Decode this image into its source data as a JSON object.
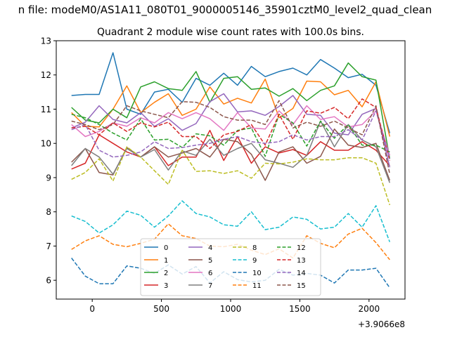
{
  "suptitle": "n file: modeM0/AS1A11_080T01_9000005146_35901cztM0_level2_quad_clean",
  "chart_data": {
    "type": "line",
    "title": "Quadrant 2 module wise count rates with 100.0s bins.",
    "xlabel": "",
    "ylabel": "",
    "x_offset_label": "+3.9066e8",
    "xlim": [
      -260,
      2260
    ],
    "ylim": [
      5.45,
      13.0
    ],
    "xticks": [
      0,
      500,
      1000,
      1500,
      2000
    ],
    "yticks": [
      6,
      7,
      8,
      9,
      10,
      11,
      12,
      13
    ],
    "legend_position": "lower-center",
    "x": [
      -150,
      -50,
      50,
      150,
      250,
      350,
      450,
      550,
      650,
      750,
      850,
      950,
      1050,
      1150,
      1250,
      1350,
      1450,
      1550,
      1650,
      1750,
      1850,
      1950,
      2050,
      2150
    ],
    "series": [
      {
        "name": "0",
        "color": "#1f77b4",
        "dash": "solid",
        "values": [
          11.4,
          11.43,
          11.43,
          12.65,
          11.0,
          10.85,
          11.5,
          11.58,
          11.2,
          11.9,
          11.7,
          12.05,
          11.7,
          12.25,
          11.95,
          12.1,
          12.2,
          12.0,
          12.45,
          12.2,
          11.92,
          12.02,
          11.7,
          10.3
        ]
      },
      {
        "name": "1",
        "color": "#ff7f0e",
        "dash": "solid",
        "values": [
          10.9,
          10.5,
          10.48,
          11.0,
          11.68,
          10.9,
          11.2,
          11.45,
          10.82,
          11.0,
          11.65,
          11.15,
          11.32,
          11.18,
          11.88,
          10.75,
          11.02,
          11.82,
          11.8,
          11.42,
          11.55,
          11.07,
          11.8,
          10.2
        ]
      },
      {
        "name": "2",
        "color": "#2ca02c",
        "dash": "solid",
        "values": [
          11.05,
          10.68,
          10.6,
          11.0,
          10.75,
          11.65,
          11.8,
          11.6,
          11.55,
          12.1,
          11.2,
          11.9,
          11.95,
          11.58,
          11.62,
          11.38,
          11.6,
          11.25,
          11.55,
          11.68,
          12.35,
          11.95,
          11.85,
          9.55
        ]
      },
      {
        "name": "3",
        "color": "#d62728",
        "dash": "solid",
        "values": [
          9.25,
          9.42,
          10.25,
          10.0,
          9.75,
          9.6,
          9.9,
          9.35,
          9.6,
          9.6,
          10.38,
          9.5,
          10.2,
          9.42,
          9.9,
          9.72,
          9.82,
          9.65,
          10.05,
          9.8,
          9.8,
          10.05,
          9.8,
          9.35
        ]
      },
      {
        "name": "4",
        "color": "#9467bd",
        "dash": "solid",
        "values": [
          10.45,
          10.62,
          11.1,
          10.7,
          10.6,
          10.9,
          10.5,
          10.72,
          10.38,
          10.58,
          11.22,
          11.45,
          10.92,
          10.95,
          10.82,
          11.08,
          11.4,
          10.85,
          10.82,
          10.3,
          10.25,
          10.85,
          11.02,
          9.3
        ]
      },
      {
        "name": "5",
        "color": "#8c564b",
        "dash": "solid",
        "values": [
          9.45,
          9.85,
          9.15,
          9.08,
          9.88,
          9.6,
          9.9,
          9.6,
          9.72,
          9.85,
          9.6,
          10.12,
          10.05,
          9.68,
          8.92,
          9.75,
          9.9,
          9.42,
          9.62,
          10.42,
          9.95,
          9.88,
          10.0,
          8.92
        ]
      },
      {
        "name": "6",
        "color": "#e377c2",
        "dash": "solid",
        "values": [
          10.55,
          10.2,
          10.35,
          10.6,
          10.5,
          10.75,
          10.6,
          10.9,
          10.72,
          10.9,
          10.72,
          10.38,
          10.9,
          10.45,
          10.42,
          10.95,
          10.55,
          11.1,
          10.7,
          10.78,
          10.48,
          10.55,
          10.95,
          9.65
        ]
      },
      {
        "name": "7",
        "color": "#7f7f7f",
        "dash": "solid",
        "values": [
          9.35,
          9.85,
          9.6,
          9.1,
          9.85,
          9.6,
          9.82,
          9.22,
          9.78,
          9.65,
          10.12,
          9.65,
          9.85,
          10.0,
          9.52,
          9.42,
          9.3,
          9.65,
          10.65,
          9.9,
          10.55,
          10.1,
          9.9,
          8.85
        ]
      },
      {
        "name": "8",
        "color": "#bcbd22",
        "dash": "dashed",
        "values": [
          8.95,
          9.15,
          9.55,
          8.9,
          9.9,
          9.6,
          9.2,
          8.8,
          9.8,
          9.18,
          9.2,
          9.12,
          9.2,
          8.98,
          9.42,
          9.4,
          9.45,
          9.55,
          9.52,
          9.52,
          9.58,
          9.58,
          9.42,
          8.2
        ]
      },
      {
        "name": "9",
        "color": "#17becf",
        "dash": "dashed",
        "values": [
          7.88,
          7.72,
          7.38,
          7.62,
          8.02,
          7.9,
          7.55,
          7.88,
          8.32,
          7.95,
          7.85,
          7.62,
          7.58,
          8.0,
          7.48,
          7.55,
          7.85,
          7.78,
          7.5,
          7.55,
          7.95,
          7.55,
          8.18,
          7.12
        ]
      },
      {
        "name": "10",
        "color": "#1f77b4",
        "dash": "dashed",
        "values": [
          6.65,
          6.12,
          5.9,
          5.9,
          6.42,
          6.35,
          6.2,
          6.45,
          6.18,
          6.4,
          5.92,
          6.25,
          6.02,
          5.95,
          6.0,
          6.32,
          6.15,
          6.2,
          6.15,
          5.92,
          6.3,
          6.3,
          6.35,
          5.78
        ]
      },
      {
        "name": "11",
        "color": "#ff7f0e",
        "dash": "dashed",
        "values": [
          6.9,
          7.15,
          7.3,
          7.05,
          6.98,
          7.08,
          7.2,
          7.65,
          7.3,
          7.22,
          7.0,
          6.98,
          7.05,
          6.88,
          6.75,
          6.92,
          6.65,
          7.3,
          7.08,
          6.95,
          7.35,
          7.52,
          7.1,
          6.6
        ]
      },
      {
        "name": "12",
        "color": "#2ca02c",
        "dash": "dashed",
        "values": [
          10.85,
          10.75,
          10.55,
          10.3,
          10.1,
          10.72,
          10.1,
          10.12,
          9.88,
          10.28,
          10.22,
          9.95,
          10.38,
          10.45,
          9.62,
          10.85,
          10.6,
          9.92,
          10.65,
          10.15,
          10.55,
          9.95,
          9.95,
          9.75
        ]
      },
      {
        "name": "13",
        "color": "#d62728",
        "dash": "dashed",
        "values": [
          10.45,
          10.5,
          10.25,
          10.6,
          10.35,
          10.6,
          10.48,
          10.62,
          10.2,
          10.2,
          9.85,
          10.25,
          10.35,
          10.55,
          9.95,
          10.85,
          10.12,
          10.95,
          10.88,
          11.05,
          10.72,
          11.3,
          11.05,
          9.5
        ]
      },
      {
        "name": "14",
        "color": "#9467bd",
        "dash": "dashed",
        "values": [
          10.4,
          10.55,
          9.8,
          9.6,
          9.65,
          9.75,
          10.05,
          9.85,
          9.88,
          9.95,
          10.0,
          10.12,
          10.2,
          10.05,
          10.0,
          10.05,
          10.25,
          10.1,
          10.2,
          10.2,
          10.4,
          10.1,
          10.95,
          9.55
        ]
      },
      {
        "name": "15",
        "color": "#8c564b",
        "dash": "dashed",
        "values": [
          10.65,
          10.55,
          10.4,
          10.55,
          11.1,
          10.95,
          10.85,
          10.75,
          11.22,
          11.2,
          11.05,
          10.78,
          10.68,
          10.68,
          10.55,
          11.25,
          10.45,
          10.62,
          10.5,
          10.65,
          10.45,
          10.25,
          11.1,
          9.1
        ]
      }
    ]
  }
}
